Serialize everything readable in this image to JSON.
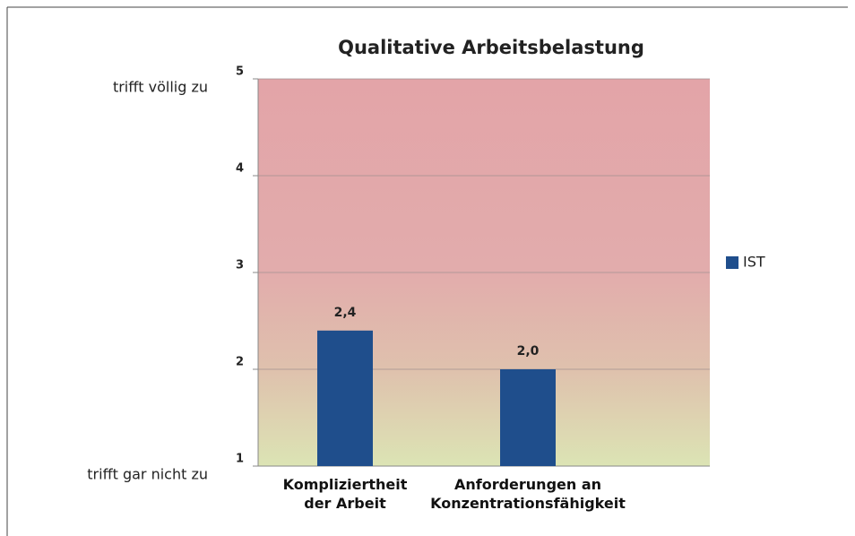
{
  "chart_data": {
    "type": "bar",
    "title": "Qualitative Arbeitsbelastung",
    "categories": [
      "Kompliziertheit\nder Arbeit",
      "Anforderungen an\nKonzentrationsfähigkeit"
    ],
    "series": [
      {
        "name": "IST",
        "color": "#1f4e8c",
        "values": [
          2.4,
          2.0
        ],
        "value_labels": [
          "2,4",
          "2,0"
        ]
      }
    ],
    "ylim": [
      1,
      5
    ],
    "yticks": [
      1,
      2,
      3,
      4,
      5
    ],
    "grid": true,
    "legend": "right",
    "annotations": [
      {
        "text": "trifft völlig zu",
        "y": 5
      },
      {
        "text": "trifft gar nicht zu",
        "y": 1
      }
    ]
  }
}
